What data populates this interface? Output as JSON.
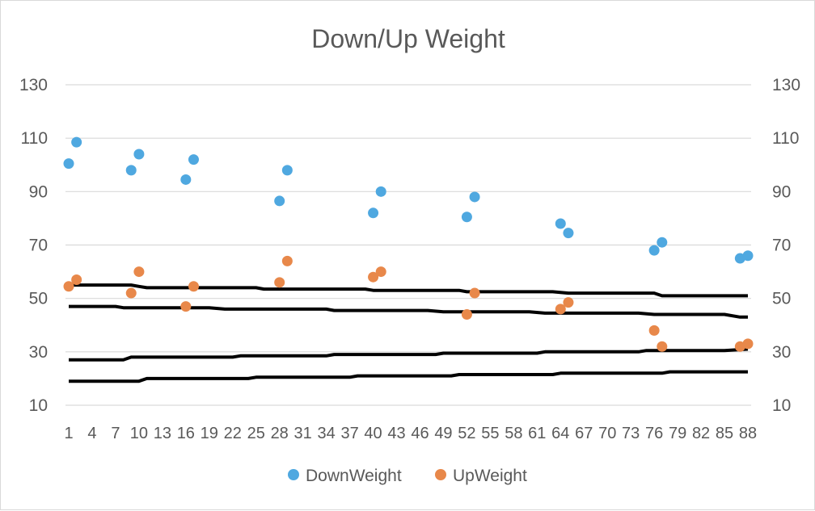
{
  "chart_data": {
    "type": "scatter",
    "title": "Down/Up Weight",
    "xlabel": "",
    "ylabel": "",
    "xlim": [
      1,
      88
    ],
    "ylim": [
      10,
      130
    ],
    "y_ticks": [
      10,
      30,
      50,
      70,
      90,
      110,
      130
    ],
    "x_ticks": [
      1,
      4,
      7,
      10,
      13,
      16,
      19,
      22,
      25,
      28,
      31,
      34,
      37,
      40,
      43,
      46,
      49,
      52,
      55,
      58,
      61,
      64,
      67,
      70,
      73,
      76,
      79,
      82,
      85,
      88
    ],
    "grid": true,
    "legend_position": "bottom",
    "series": [
      {
        "name": "DownWeight",
        "color": "#5B9BD5",
        "x": [
          1,
          2,
          9,
          10,
          16,
          17,
          28,
          29,
          40,
          41,
          52,
          53,
          64,
          65,
          76,
          77,
          87,
          88
        ],
        "y": [
          100.5,
          108.5,
          98,
          104,
          94.5,
          102,
          86.5,
          98,
          82,
          90,
          80.5,
          88,
          78,
          74.5,
          68,
          71,
          65,
          66
        ]
      },
      {
        "name": "UpWeight",
        "color": "#ED7D31",
        "x": [
          1,
          2,
          9,
          10,
          16,
          17,
          28,
          29,
          40,
          41,
          52,
          53,
          64,
          65,
          76,
          77,
          87,
          88
        ],
        "y": [
          54.5,
          57,
          52,
          60,
          47,
          54.5,
          56,
          64,
          58,
          60,
          44,
          52,
          46,
          48.5,
          38,
          32,
          32,
          33
        ]
      }
    ],
    "reference_lines": {
      "color": "#000000",
      "lines": [
        {
          "points": [
            [
              1,
              55
            ],
            [
              9,
              55
            ],
            [
              10,
              54.5
            ],
            [
              11,
              54
            ],
            [
              25,
              54
            ],
            [
              26,
              53.5
            ],
            [
              39,
              53.5
            ],
            [
              40,
              53
            ],
            [
              51,
              53
            ],
            [
              52,
              52.5
            ],
            [
              63,
              52.5
            ],
            [
              65,
              52
            ],
            [
              76,
              52
            ],
            [
              77,
              51
            ],
            [
              88,
              51
            ]
          ]
        },
        {
          "points": [
            [
              1,
              47
            ],
            [
              7,
              47
            ],
            [
              8,
              46.5
            ],
            [
              19,
              46.5
            ],
            [
              21,
              46
            ],
            [
              34,
              46
            ],
            [
              35,
              45.5
            ],
            [
              47,
              45.5
            ],
            [
              49,
              45
            ],
            [
              60,
              45
            ],
            [
              62,
              44.5
            ],
            [
              74,
              44.5
            ],
            [
              76,
              44
            ],
            [
              85,
              44
            ],
            [
              87,
              43
            ],
            [
              88,
              43
            ]
          ]
        },
        {
          "points": [
            [
              1,
              27
            ],
            [
              8,
              27
            ],
            [
              9,
              28
            ],
            [
              22,
              28
            ],
            [
              23,
              28.5
            ],
            [
              34,
              28.5
            ],
            [
              35,
              29
            ],
            [
              48,
              29
            ],
            [
              49,
              29.5
            ],
            [
              61,
              29.5
            ],
            [
              62,
              30
            ],
            [
              74,
              30
            ],
            [
              75,
              30.5
            ],
            [
              85,
              30.5
            ],
            [
              88,
              31
            ]
          ]
        },
        {
          "points": [
            [
              1,
              19
            ],
            [
              10,
              19
            ],
            [
              11,
              20
            ],
            [
              24,
              20
            ],
            [
              25,
              20.5
            ],
            [
              37,
              20.5
            ],
            [
              38,
              21
            ],
            [
              50,
              21
            ],
            [
              51,
              21.5
            ],
            [
              63,
              21.5
            ],
            [
              64,
              22
            ],
            [
              77,
              22
            ],
            [
              78,
              22.5
            ],
            [
              88,
              22.5
            ]
          ]
        }
      ]
    }
  }
}
